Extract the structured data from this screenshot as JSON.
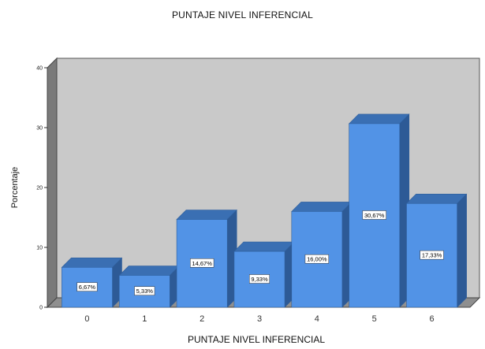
{
  "chart_data": {
    "type": "bar",
    "title": "PUNTAJE NIVEL INFERENCIAL",
    "xlabel": "PUNTAJE NIVEL INFERENCIAL",
    "ylabel": "Porcentaje",
    "categories": [
      "0",
      "1",
      "2",
      "3",
      "4",
      "5",
      "6"
    ],
    "values": [
      6.67,
      5.33,
      14.67,
      9.33,
      16.0,
      30.67,
      17.33
    ],
    "data_labels": [
      "6,67%",
      "5,33%",
      "14,67%",
      "9,33%",
      "16,00%",
      "30,67%",
      "17,33%"
    ],
    "yticks": [
      "0",
      "10",
      "20",
      "30",
      "40"
    ],
    "ylim": [
      0,
      40
    ],
    "grid": false,
    "style": "3d",
    "colors": {
      "bar_front": "#5293e6",
      "bar_top": "#3a6fb3",
      "bar_side": "#2d5a96",
      "bar_edge": "#2f5f9c",
      "plot_back": "#c9c9c9",
      "floor": "#8f8f8f",
      "wall_side": "#7a7a7a"
    }
  }
}
